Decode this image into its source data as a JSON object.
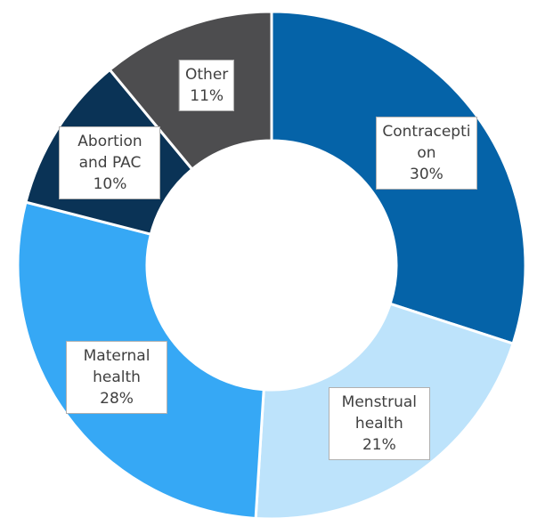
{
  "chart_data": {
    "type": "donut",
    "categories": [
      "Contraception",
      "Menstrual health",
      "Maternal health",
      "Abortion and PAC",
      "Other"
    ],
    "values": [
      30,
      21,
      28,
      10,
      11
    ],
    "value_labels": [
      "30%",
      "21%",
      "28%",
      "10%",
      "11%"
    ],
    "colors": [
      "#0563a8",
      "#bde3fb",
      "#36a8f5",
      "#0a3356",
      "#4d4d4f"
    ]
  }
}
